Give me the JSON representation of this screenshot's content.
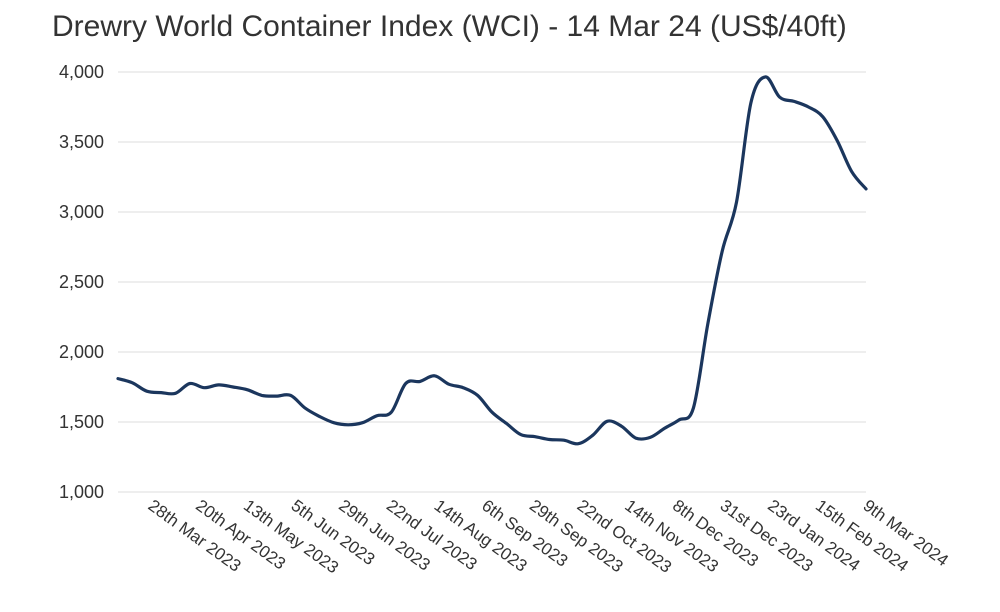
{
  "chart_data": {
    "type": "line",
    "title": "Drewry World Container Index (WCI) - 14 Mar 24 (US$/40ft)",
    "xlabel": "",
    "ylabel": "",
    "ylim": [
      1000,
      4000
    ],
    "yticks": [
      1000,
      1500,
      2000,
      2500,
      3000,
      3500,
      4000
    ],
    "ytick_labels": [
      "1,000",
      "1,500",
      "2,000",
      "2,500",
      "3,000",
      "3,500",
      "4,000"
    ],
    "grid": true,
    "legend": "none",
    "line_color": "#1b365d",
    "grid_color": "#dddddd",
    "x_tick_labels": [
      "28th Mar 2023",
      "20th Apr 2023",
      "13th May 2023",
      "5th Jun 2023",
      "29th Jun 2023",
      "22nd Jul 2023",
      "14th Aug 2023",
      "6th Sep 2023",
      "29th Sep 2023",
      "22nd Oct 2023",
      "14th Nov 2023",
      "8th Dec 2023",
      "31st Dec 2023",
      "23rd Jan 2024",
      "15th Feb 2024",
      "9th Mar 2024"
    ],
    "x_range": [
      "2023-03-16",
      "2024-03-14"
    ],
    "series": [
      {
        "points": [
          [
            "2023-03-16",
            1810
          ],
          [
            "2023-03-23",
            1780
          ],
          [
            "2023-03-30",
            1720
          ],
          [
            "2023-04-06",
            1710
          ],
          [
            "2023-04-13",
            1705
          ],
          [
            "2023-04-20",
            1775
          ],
          [
            "2023-04-27",
            1745
          ],
          [
            "2023-05-04",
            1765
          ],
          [
            "2023-05-11",
            1750
          ],
          [
            "2023-05-18",
            1730
          ],
          [
            "2023-05-25",
            1690
          ],
          [
            "2023-06-01",
            1685
          ],
          [
            "2023-06-08",
            1690
          ],
          [
            "2023-06-15",
            1600
          ],
          [
            "2023-06-22",
            1540
          ],
          [
            "2023-06-29",
            1495
          ],
          [
            "2023-07-06",
            1480
          ],
          [
            "2023-07-13",
            1495
          ],
          [
            "2023-07-20",
            1545
          ],
          [
            "2023-07-27",
            1570
          ],
          [
            "2023-08-03",
            1775
          ],
          [
            "2023-08-10",
            1790
          ],
          [
            "2023-08-17",
            1830
          ],
          [
            "2023-08-24",
            1770
          ],
          [
            "2023-08-31",
            1745
          ],
          [
            "2023-09-07",
            1690
          ],
          [
            "2023-09-14",
            1570
          ],
          [
            "2023-09-21",
            1490
          ],
          [
            "2023-09-28",
            1410
          ],
          [
            "2023-10-05",
            1395
          ],
          [
            "2023-10-12",
            1375
          ],
          [
            "2023-10-19",
            1370
          ],
          [
            "2023-10-26",
            1345
          ],
          [
            "2023-11-02",
            1405
          ],
          [
            "2023-11-09",
            1505
          ],
          [
            "2023-11-16",
            1470
          ],
          [
            "2023-11-23",
            1385
          ],
          [
            "2023-11-30",
            1390
          ],
          [
            "2023-12-07",
            1455
          ],
          [
            "2023-12-14",
            1515
          ],
          [
            "2023-12-21",
            1600
          ],
          [
            "2023-12-28",
            2200
          ],
          [
            "2024-01-04",
            2720
          ],
          [
            "2024-01-11",
            3070
          ],
          [
            "2024-01-18",
            3780
          ],
          [
            "2024-01-25",
            3965
          ],
          [
            "2024-02-01",
            3820
          ],
          [
            "2024-02-08",
            3790
          ],
          [
            "2024-02-15",
            3750
          ],
          [
            "2024-02-22",
            3680
          ],
          [
            "2024-02-29",
            3510
          ],
          [
            "2024-03-07",
            3290
          ],
          [
            "2024-03-14",
            3165
          ]
        ]
      }
    ]
  }
}
